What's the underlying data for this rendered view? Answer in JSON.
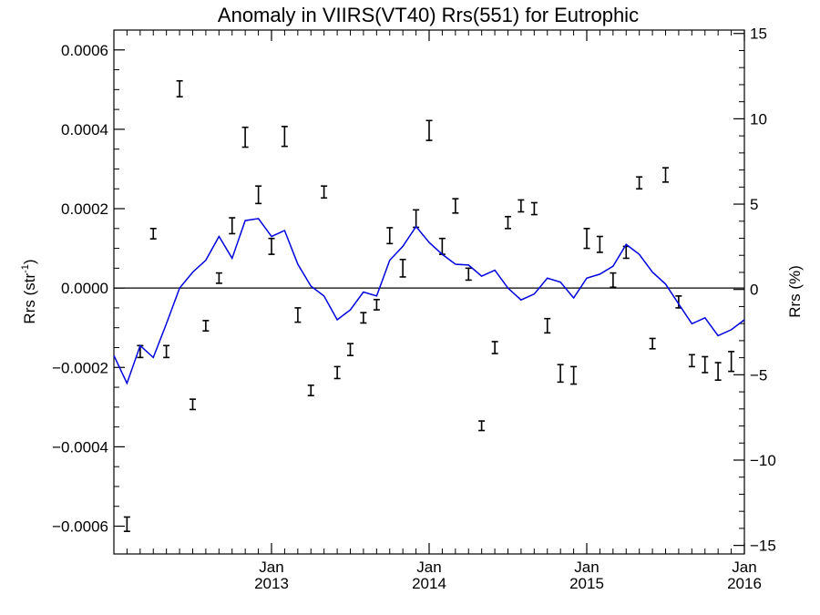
{
  "chart_data": {
    "type": "line",
    "title": "Anomaly in VIIRS(VT40) Rrs(551) for Eutrophic",
    "ylabel_left": "Rrs (str⁻¹)",
    "ylabel_left_base": "Rrs (str",
    "ylabel_left_sup": "-1",
    "ylabel_left_close": ")",
    "ylabel_right": "Rrs (%)",
    "xlim": [
      2012.0,
      2016.0
    ],
    "ylim_left": [
      -0.00067,
      0.00065
    ],
    "ylim_right": [
      -15.5,
      15.2
    ],
    "x_ticks": [
      {
        "x": 2013.0,
        "month": "Jan",
        "year": "2013"
      },
      {
        "x": 2014.0,
        "month": "Jan",
        "year": "2014"
      },
      {
        "x": 2015.0,
        "month": "Jan",
        "year": "2015"
      },
      {
        "x": 2016.0,
        "month": "Jan",
        "year": "2016"
      }
    ],
    "y_ticks_left": [
      {
        "value": 0.0006,
        "label": "0.0006"
      },
      {
        "value": 0.0004,
        "label": "0.0004"
      },
      {
        "value": 0.0002,
        "label": "0.0002"
      },
      {
        "value": 0.0,
        "label": "0.0000"
      },
      {
        "value": -0.0002,
        "label": "−0.0002"
      },
      {
        "value": -0.0004,
        "label": "−0.0004"
      },
      {
        "value": -0.0006,
        "label": "−0.0006"
      }
    ],
    "y_ticks_right": [
      {
        "value": 15,
        "label": "15"
      },
      {
        "value": 10,
        "label": "10"
      },
      {
        "value": 5,
        "label": "5"
      },
      {
        "value": 0,
        "label": "0"
      },
      {
        "value": -5,
        "label": "−5"
      },
      {
        "value": -10,
        "label": "−10"
      },
      {
        "value": -15,
        "label": "−15"
      }
    ],
    "zero_line": 0.0,
    "colors": {
      "line": "#0000dd",
      "errorbar": "#000000",
      "axis": "#000000"
    },
    "series": [
      {
        "type": "errorbar",
        "axis": "left",
        "points": [
          {
            "x": 2012.083,
            "y": -0.000595,
            "err": 1.8e-05
          },
          {
            "x": 2012.167,
            "y": -0.00016,
            "err": 1.5e-05
          },
          {
            "x": 2012.25,
            "y": 0.000137,
            "err": 1.3e-05
          },
          {
            "x": 2012.333,
            "y": -0.00016,
            "err": 1.5e-05
          },
          {
            "x": 2012.417,
            "y": 0.000502,
            "err": 2e-05
          },
          {
            "x": 2012.5,
            "y": -0.000293,
            "err": 1.3e-05
          },
          {
            "x": 2012.583,
            "y": -9.5e-05,
            "err": 1.3e-05
          },
          {
            "x": 2012.667,
            "y": 2.5e-05,
            "err": 1.3e-05
          },
          {
            "x": 2012.75,
            "y": 0.000157,
            "err": 2e-05
          },
          {
            "x": 2012.833,
            "y": 0.00038,
            "err": 2.5e-05
          },
          {
            "x": 2012.917,
            "y": 0.000235,
            "err": 2.2e-05
          },
          {
            "x": 2013.0,
            "y": 0.000105,
            "err": 2e-05
          },
          {
            "x": 2013.083,
            "y": 0.000382,
            "err": 2.5e-05
          },
          {
            "x": 2013.167,
            "y": -6.8e-05,
            "err": 1.8e-05
          },
          {
            "x": 2013.25,
            "y": -0.000258,
            "err": 1.3e-05
          },
          {
            "x": 2013.333,
            "y": 0.000242,
            "err": 1.5e-05
          },
          {
            "x": 2013.417,
            "y": -0.000213,
            "err": 1.5e-05
          },
          {
            "x": 2013.5,
            "y": -0.000155,
            "err": 1.5e-05
          },
          {
            "x": 2013.583,
            "y": -7.5e-05,
            "err": 1.3e-05
          },
          {
            "x": 2013.667,
            "y": -4.2e-05,
            "err": 1.3e-05
          },
          {
            "x": 2013.75,
            "y": 0.000132,
            "err": 2e-05
          },
          {
            "x": 2013.833,
            "y": 5e-05,
            "err": 2.2e-05
          },
          {
            "x": 2013.917,
            "y": 0.000175,
            "err": 2.2e-05
          },
          {
            "x": 2014.0,
            "y": 0.000397,
            "err": 2.5e-05
          },
          {
            "x": 2014.083,
            "y": 0.000105,
            "err": 2e-05
          },
          {
            "x": 2014.167,
            "y": 0.000207,
            "err": 1.8e-05
          },
          {
            "x": 2014.25,
            "y": 3.5e-05,
            "err": 1.5e-05
          },
          {
            "x": 2014.333,
            "y": -0.000347,
            "err": 1.2e-05
          },
          {
            "x": 2014.417,
            "y": -0.00015,
            "err": 1.5e-05
          },
          {
            "x": 2014.5,
            "y": 0.000165,
            "err": 1.5e-05
          },
          {
            "x": 2014.583,
            "y": 0.000207,
            "err": 1.5e-05
          },
          {
            "x": 2014.667,
            "y": 0.0002,
            "err": 1.5e-05
          },
          {
            "x": 2014.75,
            "y": -9.5e-05,
            "err": 1.8e-05
          },
          {
            "x": 2014.833,
            "y": -0.000215,
            "err": 2.2e-05
          },
          {
            "x": 2014.917,
            "y": -0.00022,
            "err": 2.2e-05
          },
          {
            "x": 2015.0,
            "y": 0.000125,
            "err": 2.5e-05
          },
          {
            "x": 2015.083,
            "y": 0.00011,
            "err": 2e-05
          },
          {
            "x": 2015.167,
            "y": 2e-05,
            "err": 1.8e-05
          },
          {
            "x": 2015.25,
            "y": 9e-05,
            "err": 1.5e-05
          },
          {
            "x": 2015.333,
            "y": 0.000265,
            "err": 1.5e-05
          },
          {
            "x": 2015.417,
            "y": -0.00014,
            "err": 1.3e-05
          },
          {
            "x": 2015.5,
            "y": 0.000285,
            "err": 1.8e-05
          },
          {
            "x": 2015.583,
            "y": -3.5e-05,
            "err": 1.5e-05
          },
          {
            "x": 2015.667,
            "y": -0.000183,
            "err": 1.5e-05
          },
          {
            "x": 2015.75,
            "y": -0.000193,
            "err": 2e-05
          },
          {
            "x": 2015.833,
            "y": -0.00021,
            "err": 2.2e-05
          },
          {
            "x": 2015.917,
            "y": -0.000185,
            "err": 2.5e-05
          }
        ]
      },
      {
        "type": "line",
        "axis": "left",
        "x": [
          2012.0,
          2012.083,
          2012.167,
          2012.25,
          2012.333,
          2012.417,
          2012.5,
          2012.583,
          2012.667,
          2012.75,
          2012.833,
          2012.917,
          2013.0,
          2013.083,
          2013.167,
          2013.25,
          2013.333,
          2013.417,
          2013.5,
          2013.583,
          2013.667,
          2013.75,
          2013.833,
          2013.917,
          2014.0,
          2014.083,
          2014.167,
          2014.25,
          2014.333,
          2014.417,
          2014.5,
          2014.583,
          2014.667,
          2014.75,
          2014.833,
          2014.917,
          2015.0,
          2015.083,
          2015.167,
          2015.25,
          2015.333,
          2015.417,
          2015.5,
          2015.583,
          2015.667,
          2015.75,
          2015.833,
          2015.917,
          2016.0
        ],
        "y": [
          -0.00017,
          -0.00024,
          -0.000145,
          -0.000175,
          -9e-05,
          0.0,
          4e-05,
          7e-05,
          0.00013,
          7.5e-05,
          0.00017,
          0.000175,
          0.00013,
          0.000145,
          6e-05,
          5e-06,
          -2e-05,
          -8e-05,
          -5.5e-05,
          -1e-05,
          -2e-05,
          7e-05,
          0.000105,
          0.000155,
          0.000115,
          8.5e-05,
          6e-05,
          5.8e-05,
          3e-05,
          4.5e-05,
          0.0,
          -3e-05,
          -1.5e-05,
          2.5e-05,
          1.5e-05,
          -2.5e-05,
          2.5e-05,
          3.5e-05,
          5.5e-05,
          0.00011,
          8.5e-05,
          4e-05,
          1e-05,
          -4e-05,
          -9e-05,
          -7.5e-05,
          -0.00012,
          -0.000105,
          -8e-05
        ]
      }
    ]
  }
}
